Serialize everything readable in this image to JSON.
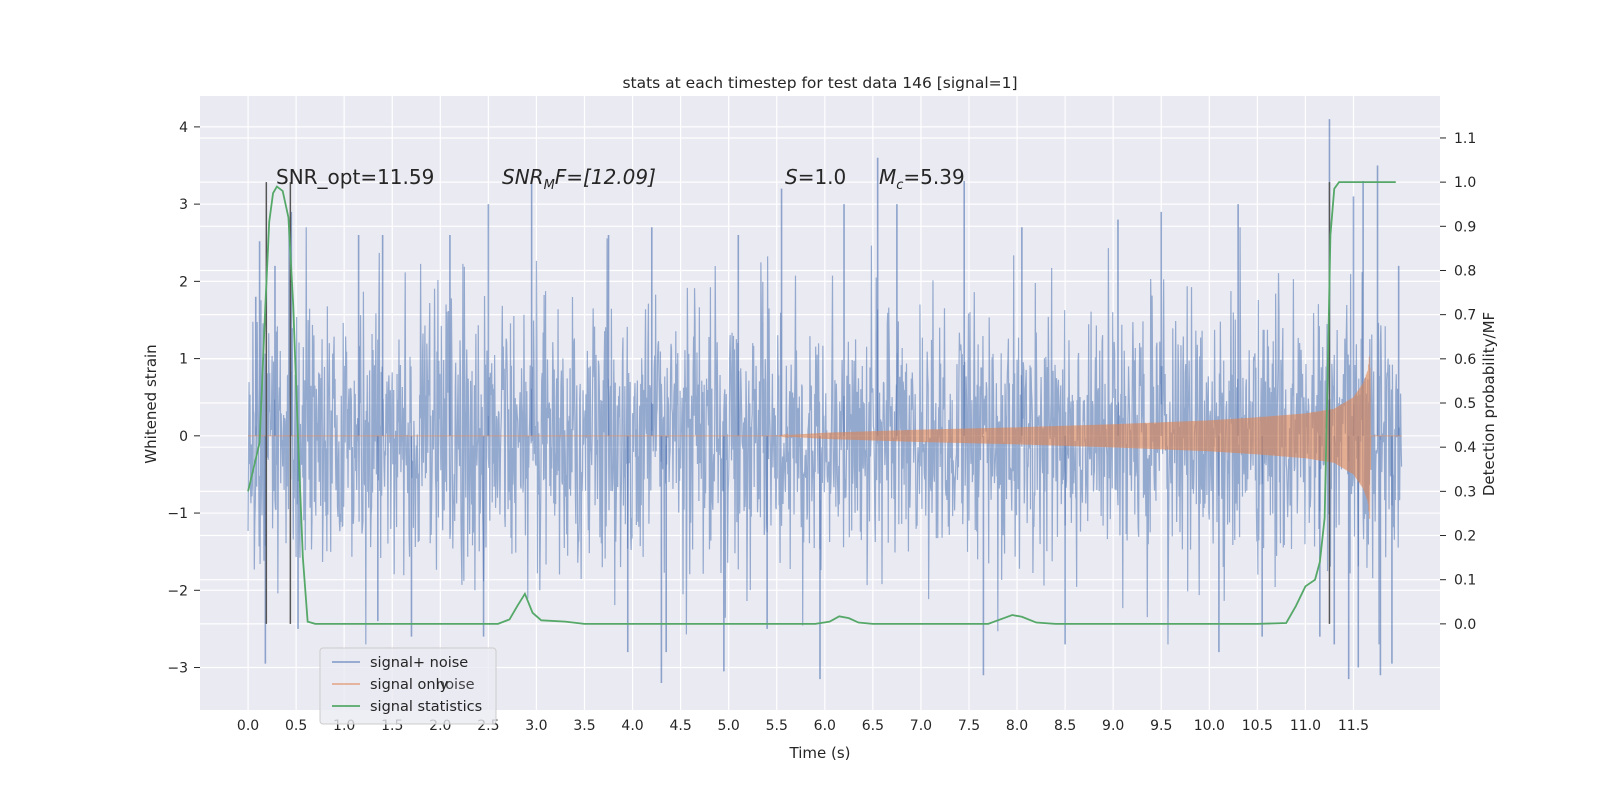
{
  "chart_data": {
    "type": "line",
    "title": "stats at each timestep for test data 146 [signal=1]",
    "xlabel": "Time (s)",
    "ylabel": "Whitened strain",
    "ylabel_right": "Detection probability/MF",
    "xlim": [
      -0.5,
      12.4
    ],
    "ylim": [
      -3.55,
      4.4
    ],
    "ylim_right": [
      -0.195,
      1.195
    ],
    "x_ticks": [
      "0.0",
      "0.5",
      "1.0",
      "1.5",
      "2.0",
      "2.5",
      "3.0",
      "3.5",
      "4.0",
      "4.5",
      "5.0",
      "5.5",
      "6.0",
      "6.5",
      "7.0",
      "7.5",
      "8.0",
      "8.5",
      "9.0",
      "9.5",
      "10.0",
      "10.5",
      "11.0",
      "11.5"
    ],
    "y_ticks": [
      "−3",
      "−2",
      "−1",
      "0",
      "1",
      "2",
      "3",
      "4"
    ],
    "y_ticks_right": [
      "0.0",
      "0.1",
      "0.2",
      "0.3",
      "0.4",
      "0.5",
      "0.6",
      "0.7",
      "0.8",
      "0.9",
      "1.0",
      "1.1"
    ],
    "grid": true,
    "legend_placement": "lower-left",
    "colors": {
      "noise": "#4c72b0",
      "signal": "#dd8452",
      "stats": "#55a868",
      "vline": "#555555",
      "background": "#eaeaf2",
      "grid": "#ffffff"
    },
    "annotations": {
      "snr_opt": "SNR_opt=11.59",
      "snr_mf_base": "SNR",
      "snr_mf_sub": "M",
      "snr_mf_rest": "F=[12.09]",
      "s_var": "S",
      "s_rest": "=1.0",
      "mc_var": "M",
      "mc_sub": "c",
      "mc_rest": "=5.39"
    },
    "vertical_lines_x": [
      0.19,
      0.44,
      11.25
    ],
    "noise_series": {
      "name": "signal+ noise",
      "x_range": [
        0.0,
        12.0
      ],
      "std": 0.85,
      "peaks": [
        {
          "x": 0.08,
          "y": 1.8
        },
        {
          "x": 0.12,
          "y": 2.52
        },
        {
          "x": 0.18,
          "y": -2.95
        },
        {
          "x": 0.28,
          "y": 2.2
        },
        {
          "x": 0.45,
          "y": 2.9
        },
        {
          "x": 0.52,
          "y": -2.5
        },
        {
          "x": 1.15,
          "y": 2.6
        },
        {
          "x": 1.35,
          "y": -2.4
        },
        {
          "x": 1.4,
          "y": 2.6
        },
        {
          "x": 1.7,
          "y": -2.6
        },
        {
          "x": 2.1,
          "y": 2.6
        },
        {
          "x": 2.45,
          "y": -2.6
        },
        {
          "x": 2.5,
          "y": 3.0
        },
        {
          "x": 2.95,
          "y": 3.3
        },
        {
          "x": 3.75,
          "y": 2.6
        },
        {
          "x": 3.95,
          "y": -2.8
        },
        {
          "x": 4.2,
          "y": 2.7
        },
        {
          "x": 4.35,
          "y": -2.8
        },
        {
          "x": 4.3,
          "y": -3.2
        },
        {
          "x": 4.95,
          "y": -3.05
        },
        {
          "x": 5.1,
          "y": 2.6
        },
        {
          "x": 5.4,
          "y": -2.5
        },
        {
          "x": 5.55,
          "y": 3.2
        },
        {
          "x": 5.95,
          "y": -3.15
        },
        {
          "x": 6.2,
          "y": 3.0
        },
        {
          "x": 6.55,
          "y": 3.6
        },
        {
          "x": 6.75,
          "y": 3.0
        },
        {
          "x": 7.45,
          "y": 3.3
        },
        {
          "x": 7.65,
          "y": -3.1
        },
        {
          "x": 8.05,
          "y": 2.7
        },
        {
          "x": 8.5,
          "y": -2.7
        },
        {
          "x": 9.05,
          "y": 2.8
        },
        {
          "x": 9.5,
          "y": 2.9
        },
        {
          "x": 10.1,
          "y": -2.8
        },
        {
          "x": 10.3,
          "y": 3.0
        },
        {
          "x": 10.55,
          "y": -2.6
        },
        {
          "x": 11.15,
          "y": -2.6
        },
        {
          "x": 11.25,
          "y": 4.1
        },
        {
          "x": 11.3,
          "y": -2.7
        },
        {
          "x": 11.45,
          "y": -3.15
        },
        {
          "x": 11.5,
          "y": 3.1
        },
        {
          "x": 11.55,
          "y": -3.0
        },
        {
          "x": 11.6,
          "y": 3.3
        },
        {
          "x": 11.75,
          "y": 3.5
        },
        {
          "x": 11.78,
          "y": -3.1
        },
        {
          "x": 11.9,
          "y": -2.95
        },
        {
          "x": 11.97,
          "y": 2.2
        }
      ]
    },
    "signal_series": {
      "name": "signal only",
      "x_range": [
        0.0,
        12.0
      ],
      "envelope": [
        {
          "x": 0.0,
          "amp": 0.0
        },
        {
          "x": 5.5,
          "amp": 0.0
        },
        {
          "x": 6.0,
          "amp": 0.04
        },
        {
          "x": 7.0,
          "amp": 0.08
        },
        {
          "x": 8.0,
          "amp": 0.11
        },
        {
          "x": 9.0,
          "amp": 0.15
        },
        {
          "x": 10.0,
          "amp": 0.2
        },
        {
          "x": 10.5,
          "amp": 0.24
        },
        {
          "x": 11.0,
          "amp": 0.29
        },
        {
          "x": 11.3,
          "amp": 0.35
        },
        {
          "x": 11.5,
          "amp": 0.5
        },
        {
          "x": 11.6,
          "amp": 0.68
        },
        {
          "x": 11.65,
          "amp": 0.85
        },
        {
          "x": 11.67,
          "amp": 1.1
        },
        {
          "x": 11.68,
          "amp": 0.0
        },
        {
          "x": 12.0,
          "amp": 0.0
        }
      ]
    },
    "stats_series": {
      "name": "signal statistics",
      "points": [
        [
          0.0,
          0.3
        ],
        [
          0.12,
          0.41
        ],
        [
          0.18,
          0.72
        ],
        [
          0.22,
          0.91
        ],
        [
          0.26,
          0.975
        ],
        [
          0.3,
          0.99
        ],
        [
          0.36,
          0.98
        ],
        [
          0.42,
          0.92
        ],
        [
          0.47,
          0.72
        ],
        [
          0.52,
          0.42
        ],
        [
          0.57,
          0.15
        ],
        [
          0.62,
          0.005
        ],
        [
          0.7,
          0.0
        ],
        [
          1.2,
          0.0
        ],
        [
          2.0,
          0.0
        ],
        [
          2.6,
          0.0
        ],
        [
          2.72,
          0.01
        ],
        [
          2.8,
          0.04
        ],
        [
          2.88,
          0.068
        ],
        [
          2.96,
          0.025
        ],
        [
          3.05,
          0.008
        ],
        [
          3.3,
          0.005
        ],
        [
          3.5,
          0.0
        ],
        [
          5.9,
          0.0
        ],
        [
          6.05,
          0.005
        ],
        [
          6.15,
          0.017
        ],
        [
          6.25,
          0.013
        ],
        [
          6.35,
          0.003
        ],
        [
          6.5,
          0.0
        ],
        [
          7.7,
          0.0
        ],
        [
          7.85,
          0.012
        ],
        [
          7.95,
          0.02
        ],
        [
          8.05,
          0.016
        ],
        [
          8.2,
          0.003
        ],
        [
          8.4,
          0.0
        ],
        [
          9.2,
          0.0
        ],
        [
          10.0,
          0.0
        ],
        [
          10.5,
          0.0
        ],
        [
          10.8,
          0.002
        ],
        [
          10.9,
          0.04
        ],
        [
          11.0,
          0.085
        ],
        [
          11.1,
          0.1
        ],
        [
          11.15,
          0.14
        ],
        [
          11.2,
          0.24
        ],
        [
          11.23,
          0.55
        ],
        [
          11.26,
          0.88
        ],
        [
          11.3,
          0.985
        ],
        [
          11.35,
          1.0
        ],
        [
          11.6,
          1.0
        ],
        [
          11.94,
          1.0
        ]
      ]
    }
  },
  "legend": {
    "items": [
      "signal+ noise",
      "signal only",
      "signal statistics"
    ],
    "ghost_text": "noise"
  }
}
